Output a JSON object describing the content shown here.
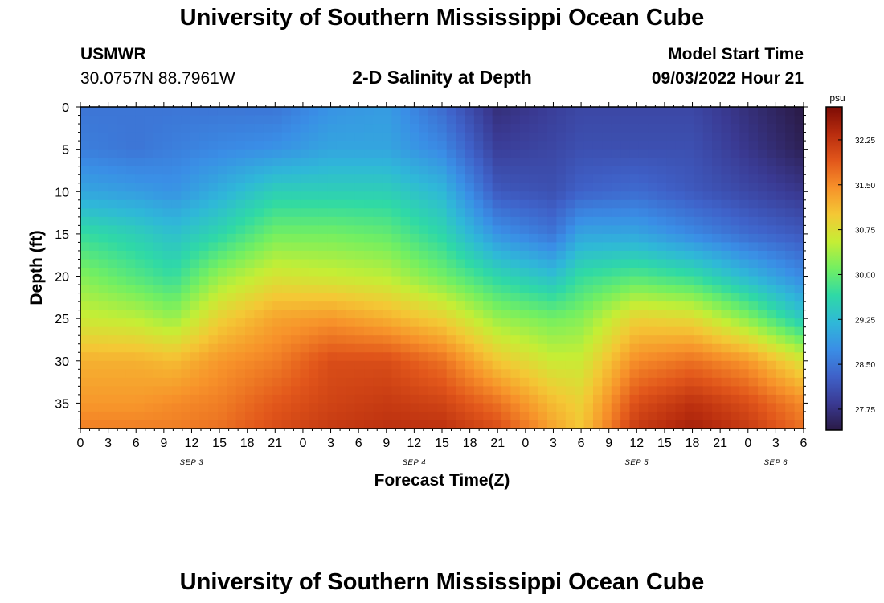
{
  "header": {
    "title": "University of Southern Mississippi Ocean Cube",
    "station_name": "USMWR",
    "station_coords": "30.0757N  88.7961W",
    "chart_subtitle": "2-D Salinity at Depth",
    "model_start_label": "Model Start Time",
    "model_start_value": "09/03/2022 Hour 21"
  },
  "footer": {
    "title_repeat": "University of Southern Mississippi Ocean Cube"
  },
  "chart_data": {
    "type": "heatmap",
    "title": "2-D Salinity at Depth",
    "xlabel": "Forecast Time(Z)",
    "ylabel": "Depth (ft)",
    "x_range_hours": [
      0,
      78
    ],
    "y_range_ft": [
      0,
      38
    ],
    "x_tick_labels": [
      "0",
      "3",
      "6",
      "9",
      "12",
      "15",
      "18",
      "21",
      "0",
      "3",
      "6",
      "9",
      "12",
      "15",
      "18",
      "21",
      "0",
      "3",
      "6",
      "9",
      "12",
      "15",
      "18",
      "21",
      "0",
      "3",
      "6"
    ],
    "x_tick_hours": [
      0,
      3,
      6,
      9,
      12,
      15,
      18,
      21,
      24,
      27,
      30,
      33,
      36,
      39,
      42,
      45,
      48,
      51,
      54,
      57,
      60,
      63,
      66,
      69,
      72,
      75,
      78
    ],
    "date_labels": [
      {
        "label": "SEP 3",
        "hour": 12
      },
      {
        "label": "SEP 4",
        "hour": 36
      },
      {
        "label": "SEP 5",
        "hour": 60
      },
      {
        "label": "SEP 6",
        "hour": 75
      }
    ],
    "y_tick_labels": [
      "0",
      "5",
      "10",
      "15",
      "20",
      "25",
      "30",
      "35"
    ],
    "y_tick_values": [
      0,
      5,
      10,
      15,
      20,
      25,
      30,
      35
    ],
    "colorbar": {
      "unit": "psu",
      "range": [
        27.4,
        32.8
      ],
      "tick_labels": [
        "27.75",
        "28.50",
        "29.25",
        "30.00",
        "30.75",
        "31.50",
        "32.25"
      ],
      "tick_values": [
        27.75,
        28.5,
        29.25,
        30.0,
        30.75,
        31.5,
        32.25
      ],
      "colors": [
        "#2a1a45",
        "#3a3a93",
        "#3f62c9",
        "#3a8ee6",
        "#2fb8d8",
        "#2fd9a6",
        "#72ef62",
        "#c5ee35",
        "#f4c835",
        "#f7922a",
        "#e2571b",
        "#b82c0e",
        "#7d0c05"
      ]
    },
    "series": {
      "depth_ft": [
        0,
        5,
        10,
        15,
        20,
        25,
        30,
        35,
        38
      ],
      "rows": [
        {
          "hour": 0,
          "salinity": [
            28.5,
            28.6,
            29.0,
            29.7,
            30.2,
            30.6,
            31.2,
            31.4,
            31.6
          ]
        },
        {
          "hour": 6,
          "salinity": [
            28.5,
            28.5,
            28.9,
            29.5,
            29.9,
            30.5,
            31.2,
            31.4,
            31.6
          ]
        },
        {
          "hour": 10,
          "salinity": [
            28.5,
            28.6,
            28.8,
            29.3,
            29.7,
            30.3,
            31.1,
            31.5,
            31.6
          ]
        },
        {
          "hour": 15,
          "salinity": [
            28.5,
            28.7,
            29.1,
            29.6,
            30.3,
            30.9,
            31.4,
            31.6,
            31.7
          ]
        },
        {
          "hour": 21,
          "salinity": [
            28.5,
            28.8,
            29.5,
            30.1,
            30.7,
            31.3,
            31.6,
            31.9,
            32.0
          ]
        },
        {
          "hour": 27,
          "salinity": [
            28.8,
            29.0,
            29.5,
            30.1,
            30.6,
            31.4,
            32.0,
            32.1,
            32.2
          ]
        },
        {
          "hour": 33,
          "salinity": [
            28.9,
            29.0,
            29.5,
            30.0,
            30.5,
            31.2,
            32.0,
            32.2,
            32.3
          ]
        },
        {
          "hour": 39,
          "salinity": [
            28.4,
            28.7,
            29.2,
            29.6,
            30.1,
            30.9,
            31.7,
            32.1,
            32.3
          ]
        },
        {
          "hour": 45,
          "salinity": [
            27.7,
            27.9,
            28.2,
            28.8,
            29.6,
            30.3,
            31.0,
            31.7,
            32.0
          ]
        },
        {
          "hour": 51,
          "salinity": [
            27.9,
            28.0,
            28.1,
            28.5,
            29.3,
            30.1,
            30.6,
            31.1,
            31.3
          ]
        },
        {
          "hour": 54,
          "salinity": [
            28.0,
            28.1,
            28.3,
            29.0,
            29.7,
            30.2,
            30.6,
            30.9,
            31.0
          ]
        },
        {
          "hour": 60,
          "salinity": [
            28.0,
            28.1,
            28.4,
            29.0,
            29.9,
            30.9,
            31.5,
            32.0,
            32.2
          ]
        },
        {
          "hour": 66,
          "salinity": [
            28.0,
            28.1,
            28.2,
            28.7,
            29.7,
            30.8,
            31.7,
            32.3,
            32.5
          ]
        },
        {
          "hour": 72,
          "salinity": [
            27.7,
            27.8,
            28.0,
            28.4,
            29.2,
            30.2,
            31.4,
            32.0,
            32.2
          ]
        },
        {
          "hour": 78,
          "salinity": [
            27.4,
            27.5,
            27.8,
            28.2,
            28.7,
            29.4,
            30.7,
            31.5,
            31.7
          ]
        }
      ]
    }
  }
}
